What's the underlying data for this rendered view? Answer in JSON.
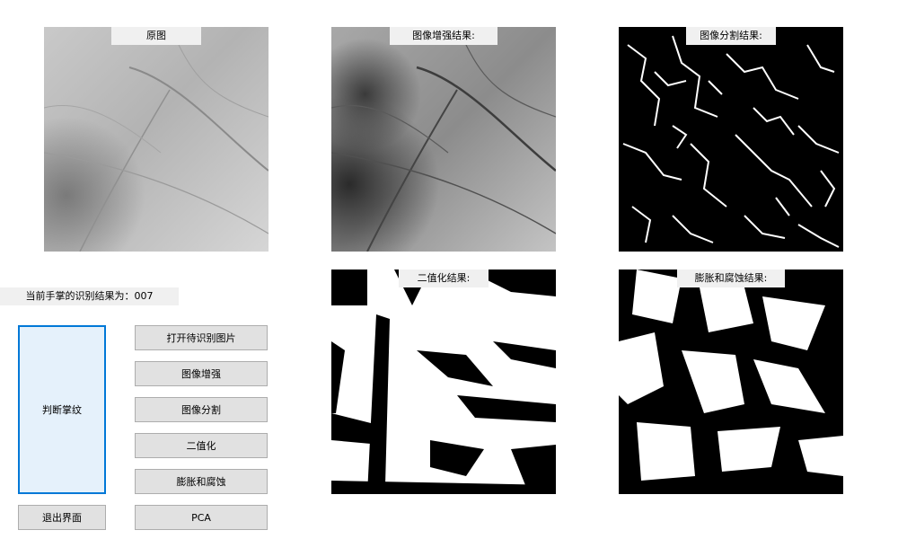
{
  "panels": {
    "original": {
      "title": "原图"
    },
    "enhance": {
      "title": "图像增强结果:"
    },
    "segment": {
      "title": "图像分割结果:"
    },
    "binary": {
      "title": "二值化结果:"
    },
    "morph": {
      "title": "膨胀和腐蚀结果:"
    }
  },
  "result": {
    "label": "当前手掌的识别结果为：007"
  },
  "buttons": {
    "judge": "判断掌纹",
    "exit": "退出界面",
    "open": "打开待识别图片",
    "enhance": "图像增强",
    "segment": "图像分割",
    "binarize": "二值化",
    "morph": "膨胀和腐蚀",
    "pca": "PCA"
  }
}
